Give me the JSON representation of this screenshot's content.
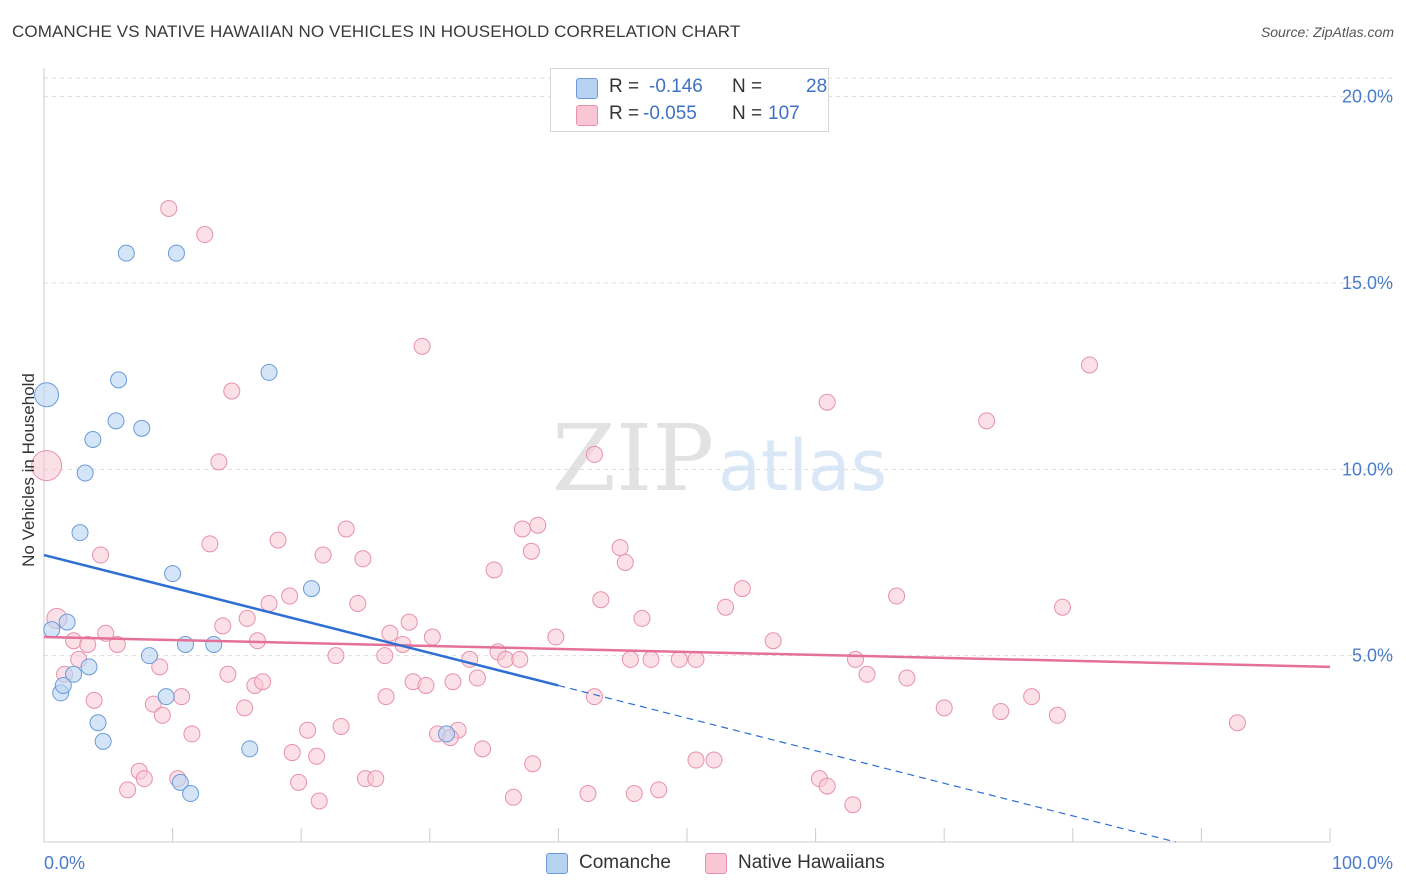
{
  "header": {
    "title": "COMANCHE VS NATIVE HAWAIIAN NO VEHICLES IN HOUSEHOLD CORRELATION CHART",
    "source": "Source: ZipAtlas.com"
  },
  "watermark": {
    "zip": "ZIP",
    "atlas": "atlas"
  },
  "legend": {
    "rows": [
      {
        "r_label": "R =",
        "r_value": "-0.146",
        "n_label": "N =",
        "n_value": "28"
      },
      {
        "r_label": "R =",
        "r_value": "-0.055",
        "n_label": "N =",
        "n_value": "107"
      }
    ]
  },
  "bottom_legend": {
    "comanche": "Comanche",
    "native": "Native Hawaiians"
  },
  "colors": {
    "comanche_fill": "#b8d3f2",
    "comanche_stroke": "#6b9ad9",
    "comanche_line": "#2f6fd1",
    "native_fill": "#f9c6d6",
    "native_stroke": "#e890ac",
    "native_line": "#e5709a",
    "axis_text": "#4a7cc9",
    "grid": "#dddddd"
  },
  "chart_data": {
    "type": "scatter",
    "title": "COMANCHE VS NATIVE HAWAIIAN NO VEHICLES IN HOUSEHOLD CORRELATION CHART",
    "xlabel": "",
    "ylabel": "No Vehicles in Household",
    "xlim": [
      0,
      100
    ],
    "ylim": [
      0,
      20.5
    ],
    "x_tick_labels": [
      "0.0%",
      "100.0%"
    ],
    "y_ticks": [
      5,
      10,
      15,
      20
    ],
    "y_tick_labels": [
      "5.0%",
      "10.0%",
      "15.0%",
      "20.0%"
    ],
    "grid": "horizontal dashed",
    "series": [
      {
        "name": "Comanche",
        "r": -0.146,
        "n": 28,
        "trend": {
          "x": [
            0,
            40
          ],
          "y": [
            7.7,
            4.2
          ],
          "dashed_to": [
            88,
            0.0
          ]
        },
        "points": [
          [
            0.2,
            12.0,
            12
          ],
          [
            1.8,
            5.9,
            8
          ],
          [
            0.6,
            5.7,
            8
          ],
          [
            2.8,
            8.3,
            8
          ],
          [
            3.2,
            9.9,
            8
          ],
          [
            3.8,
            10.8,
            8
          ],
          [
            5.6,
            11.3,
            8
          ],
          [
            5.8,
            12.4,
            8
          ],
          [
            6.4,
            15.8,
            8
          ],
          [
            7.6,
            11.1,
            8
          ],
          [
            10.3,
            15.8,
            8
          ],
          [
            17.5,
            12.6,
            8
          ],
          [
            10.0,
            7.2,
            8
          ],
          [
            11.0,
            5.3,
            8
          ],
          [
            13.2,
            5.3,
            8
          ],
          [
            8.2,
            5.0,
            8
          ],
          [
            2.3,
            4.5,
            8
          ],
          [
            3.5,
            4.7,
            8
          ],
          [
            1.3,
            4.0,
            8
          ],
          [
            1.5,
            4.2,
            8
          ],
          [
            4.2,
            3.2,
            8
          ],
          [
            4.6,
            2.7,
            8
          ],
          [
            9.5,
            3.9,
            8
          ],
          [
            10.6,
            1.6,
            8
          ],
          [
            11.4,
            1.3,
            8
          ],
          [
            16.0,
            2.5,
            8
          ],
          [
            20.8,
            6.8,
            8
          ],
          [
            31.3,
            2.9,
            8
          ]
        ]
      },
      {
        "name": "Native Hawaiians",
        "r": -0.055,
        "n": 107,
        "trend": {
          "x": [
            0,
            100
          ],
          "y": [
            5.5,
            4.7
          ]
        },
        "points": [
          [
            0.2,
            10.1,
            15
          ],
          [
            1.0,
            6.0,
            10
          ],
          [
            9.7,
            17.0,
            8
          ],
          [
            12.5,
            16.3,
            8
          ],
          [
            29.4,
            13.3,
            8
          ],
          [
            14.6,
            12.1,
            8
          ],
          [
            13.6,
            10.2,
            8
          ],
          [
            42.8,
            10.4,
            8
          ],
          [
            81.3,
            12.8,
            8
          ],
          [
            60.9,
            11.8,
            8
          ],
          [
            73.3,
            11.3,
            8
          ],
          [
            4.4,
            7.7,
            8
          ],
          [
            12.9,
            8.0,
            8
          ],
          [
            18.2,
            8.1,
            8
          ],
          [
            23.5,
            8.4,
            8
          ],
          [
            21.7,
            7.7,
            8
          ],
          [
            24.8,
            7.6,
            8
          ],
          [
            37.9,
            7.8,
            8
          ],
          [
            37.2,
            8.4,
            8
          ],
          [
            38.4,
            8.5,
            8
          ],
          [
            44.8,
            7.9,
            8
          ],
          [
            35.0,
            7.3,
            8
          ],
          [
            45.2,
            7.5,
            8
          ],
          [
            54.3,
            6.8,
            8
          ],
          [
            66.3,
            6.6,
            8
          ],
          [
            79.2,
            6.3,
            8
          ],
          [
            17.5,
            6.4,
            8
          ],
          [
            19.1,
            6.6,
            8
          ],
          [
            24.4,
            6.4,
            8
          ],
          [
            43.3,
            6.5,
            8
          ],
          [
            46.5,
            6.0,
            8
          ],
          [
            53.0,
            6.3,
            8
          ],
          [
            15.8,
            6.0,
            8
          ],
          [
            28.4,
            5.9,
            8
          ],
          [
            2.3,
            5.4,
            8
          ],
          [
            3.4,
            5.3,
            8
          ],
          [
            4.8,
            5.6,
            8
          ],
          [
            5.7,
            5.3,
            8
          ],
          [
            13.9,
            5.8,
            8
          ],
          [
            16.6,
            5.4,
            8
          ],
          [
            26.9,
            5.6,
            8
          ],
          [
            30.2,
            5.5,
            8
          ],
          [
            39.8,
            5.5,
            8
          ],
          [
            56.7,
            5.4,
            8
          ],
          [
            35.3,
            5.1,
            8
          ],
          [
            22.7,
            5.0,
            8
          ],
          [
            26.5,
            5.0,
            8
          ],
          [
            27.9,
            5.3,
            8
          ],
          [
            33.1,
            4.9,
            8
          ],
          [
            35.9,
            4.9,
            8
          ],
          [
            37.0,
            4.9,
            8
          ],
          [
            47.2,
            4.9,
            8
          ],
          [
            49.4,
            4.9,
            8
          ],
          [
            63.1,
            4.9,
            8
          ],
          [
            2.7,
            4.9,
            8
          ],
          [
            1.6,
            4.5,
            8
          ],
          [
            9.0,
            4.7,
            8
          ],
          [
            14.3,
            4.5,
            8
          ],
          [
            16.4,
            4.2,
            8
          ],
          [
            17.0,
            4.3,
            8
          ],
          [
            28.7,
            4.3,
            8
          ],
          [
            29.7,
            4.2,
            8
          ],
          [
            31.8,
            4.3,
            8
          ],
          [
            33.7,
            4.4,
            8
          ],
          [
            64.0,
            4.5,
            8
          ],
          [
            67.1,
            4.4,
            8
          ],
          [
            3.9,
            3.8,
            8
          ],
          [
            8.5,
            3.7,
            8
          ],
          [
            10.7,
            3.9,
            8
          ],
          [
            15.6,
            3.6,
            8
          ],
          [
            26.6,
            3.9,
            8
          ],
          [
            42.8,
            3.9,
            8
          ],
          [
            70.0,
            3.6,
            8
          ],
          [
            74.4,
            3.5,
            8
          ],
          [
            76.8,
            3.9,
            8
          ],
          [
            78.8,
            3.4,
            8
          ],
          [
            92.8,
            3.2,
            8
          ],
          [
            9.2,
            3.4,
            8
          ],
          [
            11.5,
            2.9,
            8
          ],
          [
            20.5,
            3.0,
            8
          ],
          [
            23.1,
            3.1,
            8
          ],
          [
            30.6,
            2.9,
            8
          ],
          [
            32.2,
            3.0,
            8
          ],
          [
            31.6,
            2.8,
            8
          ],
          [
            34.1,
            2.5,
            8
          ],
          [
            19.3,
            2.4,
            8
          ],
          [
            21.2,
            2.3,
            8
          ],
          [
            38.0,
            2.1,
            8
          ],
          [
            50.7,
            2.2,
            8
          ],
          [
            52.1,
            2.2,
            8
          ],
          [
            7.4,
            1.9,
            8
          ],
          [
            7.8,
            1.7,
            8
          ],
          [
            10.4,
            1.7,
            8
          ],
          [
            6.5,
            1.4,
            8
          ],
          [
            19.8,
            1.6,
            8
          ],
          [
            25.0,
            1.7,
            8
          ],
          [
            25.8,
            1.7,
            8
          ],
          [
            21.4,
            1.1,
            8
          ],
          [
            36.5,
            1.2,
            8
          ],
          [
            42.3,
            1.3,
            8
          ],
          [
            45.9,
            1.3,
            8
          ],
          [
            47.8,
            1.4,
            8
          ],
          [
            60.3,
            1.7,
            8
          ],
          [
            60.9,
            1.5,
            8
          ],
          [
            62.9,
            1.0,
            8
          ],
          [
            50.7,
            4.9,
            8
          ],
          [
            45.6,
            4.9,
            8
          ]
        ]
      }
    ]
  }
}
